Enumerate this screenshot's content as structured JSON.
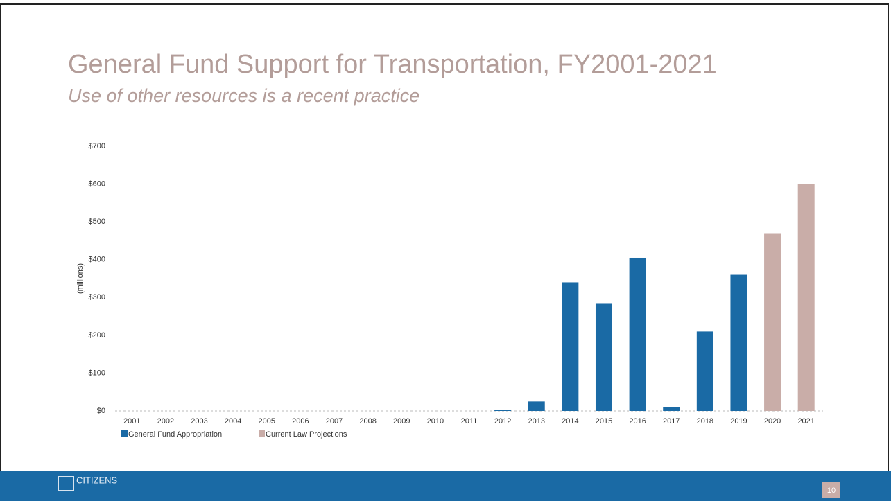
{
  "title": "General Fund Support for Transportation, FY2001-2021",
  "subtitle": "Use of other resources is a recent practice",
  "chart_data": {
    "type": "bar",
    "y_label": "(millions)",
    "categories": [
      "2001",
      "2002",
      "2003",
      "2004",
      "2005",
      "2006",
      "2007",
      "2008",
      "2009",
      "2010",
      "2011",
      "2012",
      "2013",
      "2014",
      "2015",
      "2016",
      "2017",
      "2018",
      "2019",
      "2020",
      "2021"
    ],
    "series": [
      {
        "name": "General Fund Appropriation",
        "color": "#1a6aa5",
        "values": [
          0,
          0,
          0,
          0,
          0,
          0,
          0,
          0,
          0,
          0,
          0,
          3,
          25,
          340,
          285,
          405,
          10,
          210,
          360,
          null,
          null
        ]
      },
      {
        "name": "Current Law Projections",
        "color": "#c9ada8",
        "values": [
          null,
          null,
          null,
          null,
          null,
          null,
          null,
          null,
          null,
          null,
          null,
          null,
          null,
          null,
          null,
          null,
          null,
          null,
          null,
          470,
          600
        ]
      }
    ],
    "ylim": [
      0,
      700
    ],
    "yticks": [
      {
        "value": 0,
        "label": "$0"
      },
      {
        "value": 100,
        "label": "$100"
      },
      {
        "value": 200,
        "label": "$200"
      },
      {
        "value": 300,
        "label": "$300"
      },
      {
        "value": 400,
        "label": "$400"
      },
      {
        "value": 500,
        "label": "$500"
      },
      {
        "value": 600,
        "label": "$600"
      },
      {
        "value": 700,
        "label": "$700"
      }
    ],
    "grid": false,
    "legend": "bottom-left"
  },
  "footer": {
    "logo": "CITIZENS",
    "page_number": "10"
  }
}
